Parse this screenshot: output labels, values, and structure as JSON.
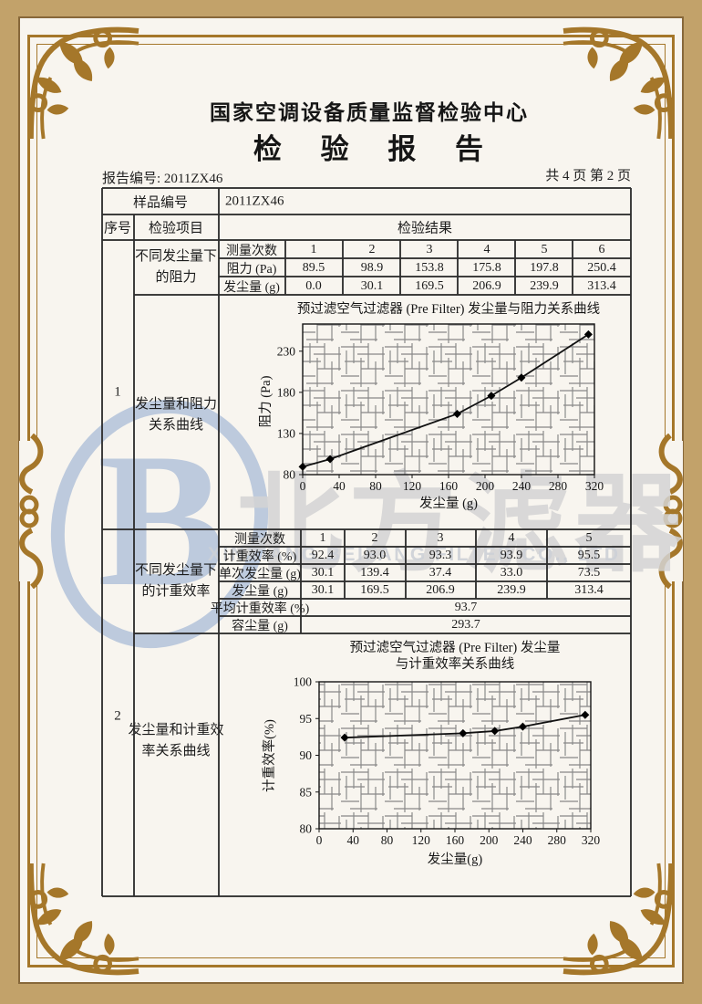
{
  "header": {
    "center_name": "国家空调设备质量监督检验中心",
    "report_title": "检 验 报 告",
    "report_no": "报告编号: 2011ZX46",
    "pagination": "共 4 页 第 2 页"
  },
  "table": {
    "sample_no_label": "样品编号",
    "sample_no_value": "2011ZX46",
    "col_seq": "序号",
    "col_item": "检验项目",
    "col_result": "检验结果",
    "row1": {
      "seq": "1",
      "item_line1": "不同发尘量下",
      "item_line2": "的阻力",
      "curve_line1": "发尘量和阻力",
      "curve_line2": "关系曲线"
    },
    "row2": {
      "seq": "2",
      "item_line1": "不同发尘量下",
      "item_line2": "的计重效率",
      "curve_line1": "发尘量和计重效",
      "curve_line2": "率关系曲线"
    },
    "resistance_table": {
      "row_labels": [
        "测量次数",
        "阻力 (Pa)",
        "发尘量 (g)"
      ],
      "counts": [
        "1",
        "2",
        "3",
        "4",
        "5",
        "6"
      ],
      "resistance": [
        "89.5",
        "98.9",
        "153.8",
        "175.8",
        "197.8",
        "250.4"
      ],
      "dust": [
        "0.0",
        "30.1",
        "169.5",
        "206.9",
        "239.9",
        "313.4"
      ]
    },
    "efficiency_table": {
      "row_labels": [
        "测量次数",
        "计重效率 (%)",
        "单次发尘量 (g)",
        "发尘量 (g)",
        "平均计重效率 (%)",
        "容尘量 (g)"
      ],
      "counts": [
        "1",
        "2",
        "3",
        "4",
        "5"
      ],
      "efficiency": [
        "92.4",
        "93.0",
        "93.3",
        "93.9",
        "95.5"
      ],
      "single_dust": [
        "30.1",
        "139.4",
        "37.4",
        "33.0",
        "73.5"
      ],
      "dust": [
        "30.1",
        "169.5",
        "206.9",
        "239.9",
        "313.4"
      ],
      "avg_efficiency": "93.7",
      "dust_capacity": "293.7"
    }
  },
  "watermark": {
    "cn_text": "北方滤器",
    "en_text": "XINXIANG BEIFANG FILTER CO., LTD",
    "logo": "beifang-b-logo",
    "blue": "#b3c3da",
    "gray": "#d4d4d4"
  },
  "colors": {
    "frame_band": "#c2a26a",
    "frame_gold": "#a5772a",
    "ink": "#1c1c1c",
    "grid_gray": "#8a8a8a"
  },
  "chart_data": [
    {
      "type": "line",
      "title": "预过滤空气过滤器 (Pre Filter) 发尘量与阻力关系曲线",
      "xlabel": "发尘量 (g)",
      "ylabel": "阻力 (Pa)",
      "x": [
        0.0,
        30.1,
        169.5,
        206.9,
        239.9,
        313.4
      ],
      "y": [
        89.5,
        98.9,
        153.8,
        175.8,
        197.8,
        250.4
      ],
      "xlim": [
        0,
        320
      ],
      "xticks": [
        0,
        40,
        80,
        120,
        160,
        200,
        240,
        280,
        320
      ],
      "ylim": [
        80,
        263
      ],
      "yticks": [
        80,
        130,
        180,
        230
      ],
      "grid": "dense-hatch",
      "marker": "diamond",
      "legend": "none"
    },
    {
      "type": "line",
      "title": "预过滤空气过滤器 (Pre Filter) 发尘量",
      "title2": "与计重效率关系曲线",
      "xlabel": "发尘量(g)",
      "ylabel": "计重效率(%)",
      "x": [
        30.1,
        169.5,
        206.9,
        239.9,
        313.4
      ],
      "y": [
        92.4,
        93.0,
        93.3,
        93.9,
        95.5
      ],
      "xlim": [
        0,
        320
      ],
      "xticks": [
        0,
        40,
        80,
        120,
        160,
        200,
        240,
        280,
        320
      ],
      "ylim": [
        80,
        100
      ],
      "yticks": [
        80,
        85,
        90,
        95,
        100
      ],
      "grid": "dense-hatch",
      "marker": "diamond",
      "legend": "none"
    }
  ]
}
